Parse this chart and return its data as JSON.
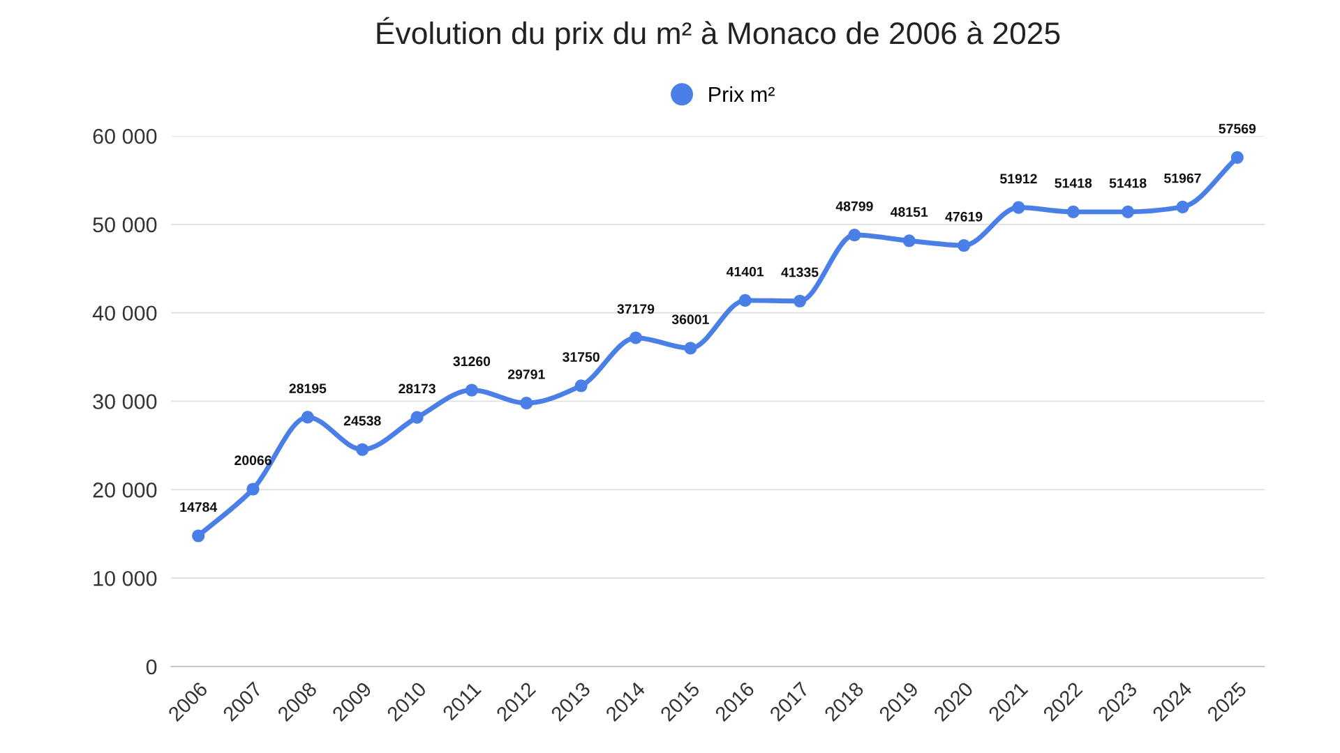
{
  "chart_data": {
    "type": "line",
    "title": "Évolution du prix du m² à Monaco de 2006 à 2025",
    "categories": [
      "2006",
      "2007",
      "2008",
      "2009",
      "2010",
      "2011",
      "2012",
      "2013",
      "2014",
      "2015",
      "2016",
      "2017",
      "2018",
      "2019",
      "2020",
      "2021",
      "2022",
      "2023",
      "2024",
      "2025"
    ],
    "series": [
      {
        "name": "Prix m²",
        "color": "#4a7fe8",
        "values": [
          14784,
          20066,
          28195,
          24538,
          28173,
          31260,
          29791,
          31750,
          37179,
          36001,
          41401,
          41335,
          48799,
          48151,
          47619,
          51912,
          51418,
          51418,
          51967,
          57569
        ]
      }
    ],
    "ylim": [
      0,
      60000
    ],
    "yticks": [
      {
        "value": 0,
        "label": "0"
      },
      {
        "value": 10000,
        "label": "10 000"
      },
      {
        "value": 20000,
        "label": "20 000"
      },
      {
        "value": 30000,
        "label": "30 000"
      },
      {
        "value": 40000,
        "label": "40 000"
      },
      {
        "value": 50000,
        "label": "50 000"
      },
      {
        "value": 60000,
        "label": "60 000"
      }
    ],
    "grid": "y",
    "legend": "top",
    "marker": "circle",
    "line_style": "solid",
    "data_labels": true
  }
}
